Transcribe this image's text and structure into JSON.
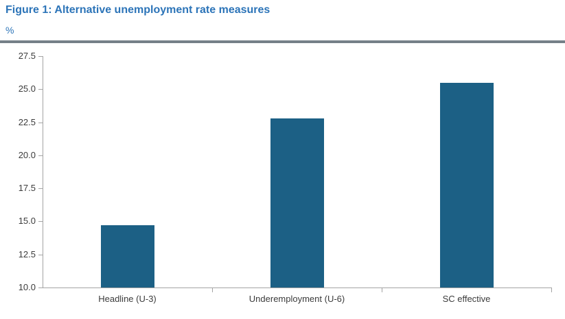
{
  "figure": {
    "title": "Figure 1: Alternative unemployment rate measures",
    "unit_label": "%"
  },
  "chart_data": {
    "type": "bar",
    "title": "Figure 1: Alternative unemployment rate measures",
    "ylabel": "%",
    "xlabel": "",
    "categories": [
      "Headline (U-3)",
      "Underemployment (U-6)",
      "SC effective"
    ],
    "values": [
      14.7,
      22.8,
      25.5
    ],
    "ylim": [
      10.0,
      27.5
    ],
    "yticks": [
      10.0,
      12.5,
      15.0,
      17.5,
      20.0,
      22.5,
      25.0,
      27.5
    ],
    "ytick_decimals": 1,
    "grid": false,
    "legend": "none",
    "bar_color": "#1c6085"
  },
  "colors": {
    "title_blue": "#2c74b8",
    "bar_fill": "#1c6085",
    "header_rule_gray": "#758088",
    "axis_gray": "#a3a3a3",
    "tick_text": "#3b3b3b",
    "background": "#ffffff"
  }
}
